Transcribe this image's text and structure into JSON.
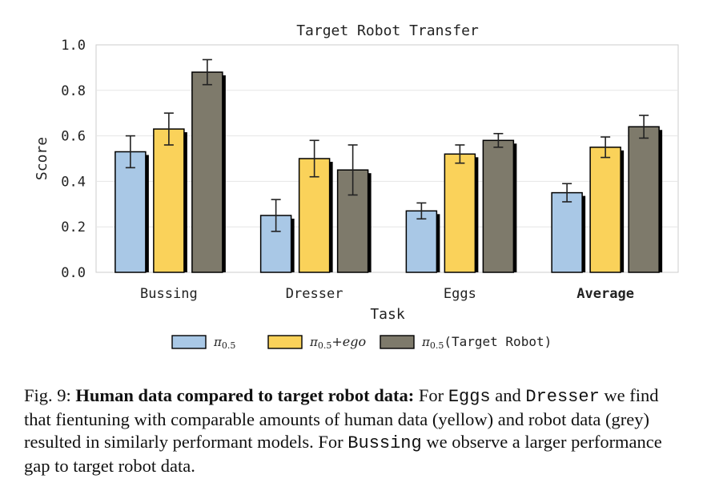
{
  "chart_data": {
    "type": "bar",
    "title": "Target Robot Transfer",
    "xlabel": "Task",
    "ylabel": "Score",
    "ylim": [
      0,
      1.0
    ],
    "yticks": [
      "0.0",
      "0.2",
      "0.4",
      "0.6",
      "0.8",
      "1.0"
    ],
    "categories": [
      "Bussing",
      "Dresser",
      "Eggs",
      "Average"
    ],
    "grid": true,
    "legend_position": "bottom",
    "series": [
      {
        "name": "π0.5",
        "legend_symbol": "π",
        "legend_sub": "0.5",
        "legend_suffix": "",
        "color": "#a9c8e6",
        "values": [
          0.53,
          0.25,
          0.27,
          0.35
        ],
        "err": [
          0.07,
          0.07,
          0.035,
          0.04
        ]
      },
      {
        "name": "π0.5+ego",
        "legend_symbol": "π",
        "legend_sub": "0.5",
        "legend_suffix": "+ego",
        "color": "#fad25a",
        "values": [
          0.63,
          0.5,
          0.52,
          0.55
        ],
        "err": [
          0.07,
          0.08,
          0.04,
          0.045
        ]
      },
      {
        "name": "π0.5(Target Robot)",
        "legend_symbol": "π",
        "legend_sub": "0.5",
        "legend_suffix": "(Target Robot)",
        "color": "#7e7a6b",
        "values": [
          0.88,
          0.45,
          0.58,
          0.64
        ],
        "err": [
          0.055,
          0.11,
          0.03,
          0.05
        ]
      }
    ]
  },
  "caption": {
    "prefix": "Fig. 9: ",
    "title": "Human data compared to target robot data:",
    "text1": " For ",
    "code1": "Eggs",
    "text2": " and ",
    "code2": "Dresser",
    "text3": " we find that fientuning with comparable amounts of human data (yellow) and robot data (grey) resulted in similarly performant models. For ",
    "code3": "Bussing",
    "text4": " we observe a larger performance gap to target robot data."
  }
}
